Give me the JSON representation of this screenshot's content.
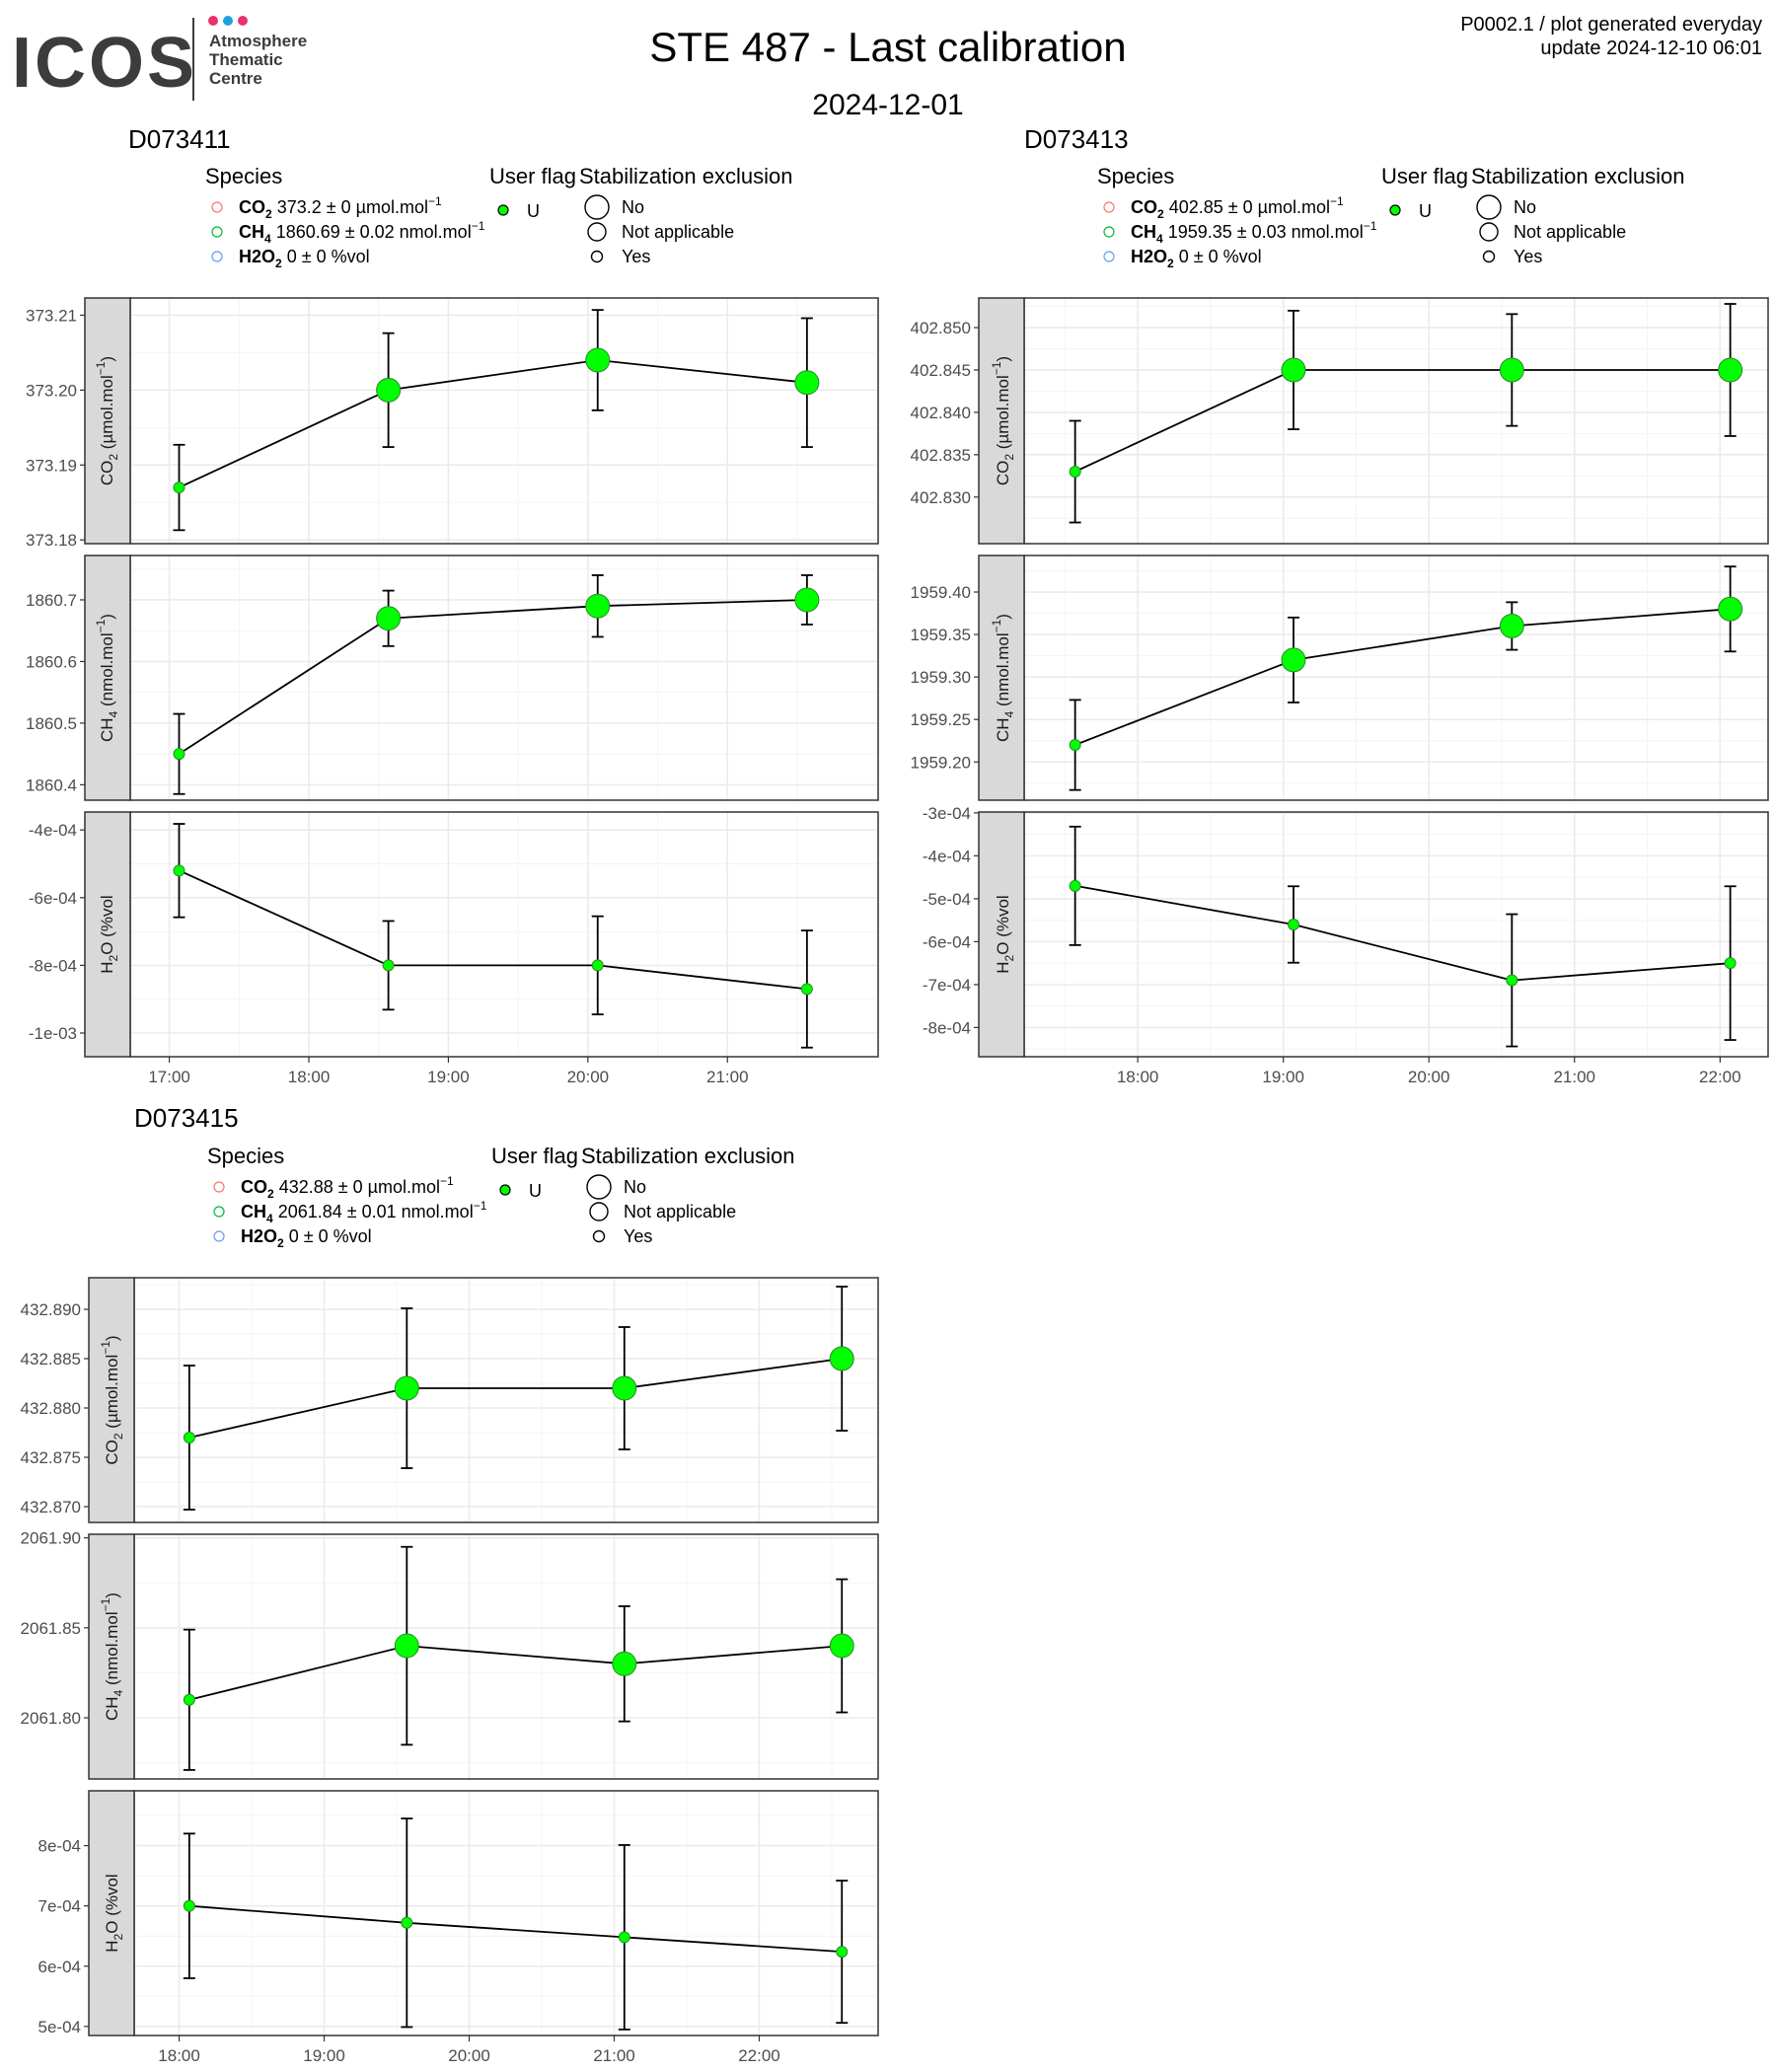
{
  "logo": {
    "text": "ICOS",
    "lines": [
      "Atmosphere",
      "Thematic",
      "Centre"
    ],
    "dot_colors": [
      "#e8336d",
      "#1fa3e0",
      "#e8336d"
    ],
    "text_color": "#3c3c3c"
  },
  "header": {
    "title": "STE 487 - Last calibration",
    "date": "2024-12-01",
    "meta_line1": "P0002.1 / plot generated everyday",
    "meta_line2": "update  2024-12-10 06:01"
  },
  "colors": {
    "point_fill": "#00ff00",
    "line": "#000000",
    "strip_fill": "#d9d9d9",
    "grid_major": "#ebebeb",
    "grid_minor": "#f4f4f4",
    "species_co2": "#f8766d",
    "species_ch4": "#00ba38",
    "species_h2o": "#619cff"
  },
  "legend_labels": {
    "species_title": "Species",
    "flag_title": "User flag",
    "stab_title": "Stabilization exclusion",
    "flag_value": "U",
    "stab_values": [
      "No",
      "Not applicable",
      "Yes"
    ]
  },
  "chart_data": [
    {
      "id": "D073411",
      "type": "line",
      "legend": [
        {
          "name": "CO2",
          "sub": "2",
          "text": " 373.2 ± 0 µmol.mol",
          "sup": "−1"
        },
        {
          "name": "CH4",
          "sub": "4",
          "text": " 1860.69 ± 0.02 nmol.mol",
          "sup": "−1"
        },
        {
          "name": "H2O",
          "sub": "2",
          "text": " 0 ± 0 %vol",
          "sup": ""
        }
      ],
      "x_ticks": [
        "17:00",
        "18:00",
        "19:00",
        "20:00",
        "21:00"
      ],
      "x_tick_hours": [
        17,
        18,
        19,
        20,
        21
      ],
      "x_range_hours": [
        16.72,
        22.08
      ],
      "panels": [
        {
          "ylabel": "CO2 (µmol.mol-1)",
          "ylim": [
            373.1795,
            373.2123
          ],
          "yticks": [
            373.18,
            373.19,
            373.2,
            373.21
          ],
          "ytick_labels": [
            "373.18",
            "373.19",
            "373.20",
            "373.21"
          ],
          "x": [
            17.07,
            18.57,
            20.07,
            21.57
          ],
          "y": [
            373.187,
            373.2,
            373.204,
            373.201
          ],
          "err": [
            0.0057,
            0.0076,
            0.0067,
            0.0086
          ],
          "stab": [
            "Yes",
            "No",
            "No",
            "No"
          ]
        },
        {
          "ylabel": "CH4 (nmol.mol-1)",
          "ylim": [
            1860.375,
            1860.772
          ],
          "yticks": [
            1860.4,
            1860.5,
            1860.6,
            1860.7
          ],
          "ytick_labels": [
            "1860.4",
            "1860.5",
            "1860.6",
            "1860.7"
          ],
          "x": [
            17.07,
            18.57,
            20.07,
            21.57
          ],
          "y": [
            1860.45,
            1860.67,
            1860.69,
            1860.7
          ],
          "err": [
            0.065,
            0.045,
            0.05,
            0.04
          ],
          "stab": [
            "Yes",
            "No",
            "No",
            "No"
          ]
        },
        {
          "ylabel": "H2O (%vol)",
          "ylim": [
            -0.00107,
            -0.000347
          ],
          "yticks": [
            -0.001,
            -0.0008,
            -0.0006,
            -0.0004
          ],
          "ytick_labels": [
            "-1e-03",
            "-8e-04",
            "-6e-04",
            "-4e-04"
          ],
          "x": [
            17.07,
            18.57,
            20.07,
            21.57
          ],
          "y": [
            -0.00052,
            -0.0008,
            -0.0008,
            -0.00087
          ],
          "err": [
            0.000138,
            0.000131,
            0.000145,
            0.000173
          ],
          "stab": [
            "Yes",
            "Yes",
            "Yes",
            "Yes"
          ]
        }
      ]
    },
    {
      "id": "D073413",
      "type": "line",
      "legend": [
        {
          "name": "CO2",
          "sub": "2",
          "text": " 402.85 ± 0 µmol.mol",
          "sup": "−1"
        },
        {
          "name": "CH4",
          "sub": "4",
          "text": " 1959.35 ± 0.03 nmol.mol",
          "sup": "−1"
        },
        {
          "name": "H2O",
          "sub": "2",
          "text": " 0 ± 0 %vol",
          "sup": ""
        }
      ],
      "x_ticks": [
        "18:00",
        "19:00",
        "20:00",
        "21:00",
        "22:00"
      ],
      "x_tick_hours": [
        18,
        19,
        20,
        21,
        22
      ],
      "x_range_hours": [
        17.22,
        22.33
      ],
      "panels": [
        {
          "ylabel": "CO2 (µmol.mol-1)",
          "ylim": [
            402.8245,
            402.8535
          ],
          "yticks": [
            402.83,
            402.835,
            402.84,
            402.845,
            402.85
          ],
          "ytick_labels": [
            "402.830",
            "402.835",
            "402.840",
            "402.845",
            "402.850"
          ],
          "x": [
            17.57,
            19.07,
            20.57,
            22.07
          ],
          "y": [
            402.833,
            402.845,
            402.845,
            402.845
          ],
          "err": [
            0.006,
            0.007,
            0.0066,
            0.0078
          ],
          "stab": [
            "Yes",
            "No",
            "No",
            "No"
          ]
        },
        {
          "ylabel": "CH4 (nmol.mol-1)",
          "ylim": [
            1959.155,
            1959.443
          ],
          "yticks": [
            1959.2,
            1959.25,
            1959.3,
            1959.35,
            1959.4
          ],
          "ytick_labels": [
            "1959.20",
            "1959.25",
            "1959.30",
            "1959.35",
            "1959.40"
          ],
          "x": [
            17.57,
            19.07,
            20.57,
            22.07
          ],
          "y": [
            1959.22,
            1959.32,
            1959.36,
            1959.38
          ],
          "err": [
            0.053,
            0.05,
            0.028,
            0.05
          ],
          "stab": [
            "Yes",
            "No",
            "No",
            "No"
          ]
        },
        {
          "ylabel": "H2O (%vol)",
          "ylim": [
            -0.000868,
            -0.000298
          ],
          "yticks": [
            -0.0008,
            -0.0007,
            -0.0006,
            -0.0005,
            -0.0004,
            -0.0003
          ],
          "ytick_labels": [
            "-8e-04",
            "-7e-04",
            "-6e-04",
            "-5e-04",
            "-4e-04",
            "-3e-04"
          ],
          "x": [
            17.57,
            19.07,
            20.57,
            22.07
          ],
          "y": [
            -0.00047,
            -0.00056,
            -0.00069,
            -0.00065
          ],
          "err": [
            0.000138,
            8.9e-05,
            0.000154,
            0.000179
          ],
          "stab": [
            "Yes",
            "Yes",
            "Yes",
            "Yes"
          ]
        }
      ]
    },
    {
      "id": "D073415",
      "type": "line",
      "legend": [
        {
          "name": "CO2",
          "sub": "2",
          "text": " 432.88 ± 0 µmol.mol",
          "sup": "−1"
        },
        {
          "name": "CH4",
          "sub": "4",
          "text": " 2061.84 ± 0.01 nmol.mol",
          "sup": "−1"
        },
        {
          "name": "H2O",
          "sub": "2",
          "text": " 0 ± 0 %vol",
          "sup": ""
        }
      ],
      "x_ticks": [
        "18:00",
        "19:00",
        "20:00",
        "21:00",
        "22:00"
      ],
      "x_tick_hours": [
        18,
        19,
        20,
        21,
        22
      ],
      "x_range_hours": [
        17.69,
        22.82
      ],
      "panels": [
        {
          "ylabel": "CO2 (µmol.mol-1)",
          "ylim": [
            432.8684,
            432.8932
          ],
          "yticks": [
            432.87,
            432.875,
            432.88,
            432.885,
            432.89
          ],
          "ytick_labels": [
            "432.870",
            "432.875",
            "432.880",
            "432.885",
            "432.890"
          ],
          "x": [
            18.07,
            19.57,
            21.07,
            22.57
          ],
          "y": [
            432.877,
            432.882,
            432.882,
            432.885
          ],
          "err": [
            0.0073,
            0.0081,
            0.0062,
            0.0073
          ],
          "stab": [
            "Yes",
            "No",
            "No",
            "No"
          ]
        },
        {
          "ylabel": "CH4 (nmol.mol-1)",
          "ylim": [
            2061.766,
            2061.902
          ],
          "yticks": [
            2061.8,
            2061.85,
            2061.9
          ],
          "ytick_labels": [
            "2061.80",
            "2061.85",
            "2061.90"
          ],
          "x": [
            18.07,
            19.57,
            21.07,
            22.57
          ],
          "y": [
            2061.81,
            2061.84,
            2061.83,
            2061.84
          ],
          "err": [
            0.039,
            0.055,
            0.032,
            0.037
          ],
          "stab": [
            "Yes",
            "No",
            "No",
            "No"
          ]
        },
        {
          "ylabel": "H2O (%vol)",
          "ylim": [
            0.000485,
            0.000891
          ],
          "yticks": [
            0.0005,
            0.0006,
            0.0007,
            0.0008
          ],
          "ytick_labels": [
            "5e-04",
            "6e-04",
            "7e-04",
            "8e-04"
          ],
          "x": [
            18.07,
            19.57,
            21.07,
            22.57
          ],
          "y": [
            0.0007,
            0.000672,
            0.000648,
            0.000624
          ],
          "err": [
            0.00012,
            0.000173,
            0.000153,
            0.000118
          ],
          "stab": [
            "Yes",
            "Yes",
            "Yes",
            "Yes"
          ]
        }
      ]
    }
  ]
}
